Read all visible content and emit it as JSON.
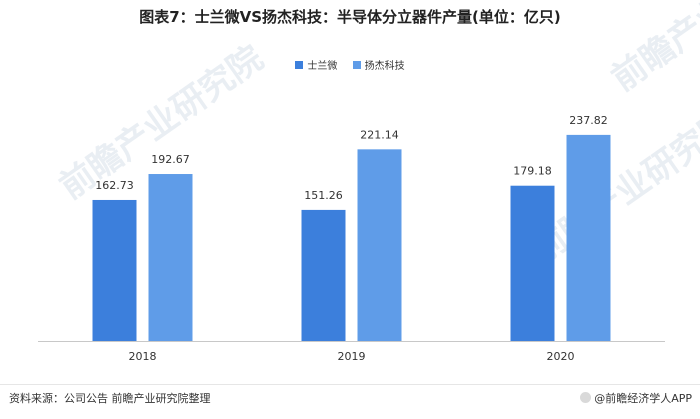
{
  "title": "图表7：士兰微VS扬杰科技：半导体分立器件产量(单位：亿只)",
  "source": "资料来源：公司公告 前瞻产业研究院整理",
  "brand": "@前瞻经济学人APP",
  "watermark_text": "前瞻产业研究院",
  "colors": {
    "series1": "#3c7fdc",
    "series2": "#5f9ce8",
    "axis": "#c8c8c8"
  },
  "chart_data": {
    "type": "bar",
    "title": "图表7：士兰微VS扬杰科技：半导体分立器件产量(单位：亿只)",
    "xlabel": "",
    "ylabel": "",
    "categories": [
      "2018",
      "2019",
      "2020"
    ],
    "series": [
      {
        "name": "士兰微",
        "values": [
          162.73,
          151.26,
          179.18
        ]
      },
      {
        "name": "扬杰科技",
        "values": [
          192.67,
          221.14,
          237.82
        ]
      }
    ],
    "ylim": [
      0,
      330
    ],
    "grid": false,
    "legend": "top"
  }
}
